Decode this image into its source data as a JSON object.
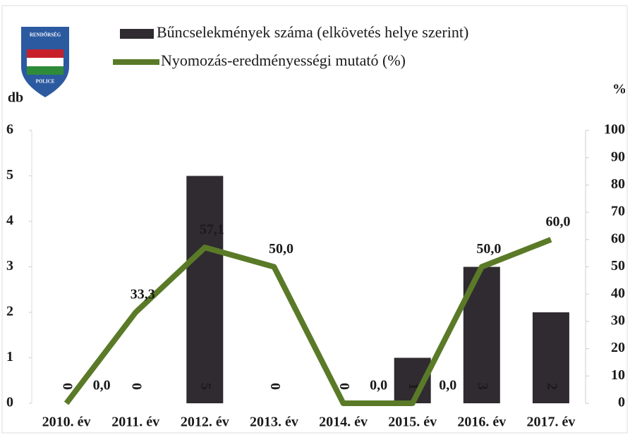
{
  "logo": {
    "top": "RENDŐRSÉG",
    "bottom": "POLICE"
  },
  "chart_data": {
    "type": "bar",
    "categories": [
      "2010. év",
      "2011. év",
      "2012. év",
      "2013. év",
      "2014. év",
      "2015. év",
      "2016. év",
      "2017. év"
    ],
    "series": [
      {
        "name": "Bűncselekmények száma (elkövetés helye szerint)",
        "type": "bar",
        "color": "#2f2b30",
        "values": [
          0,
          0,
          5,
          0,
          0,
          1,
          3,
          2
        ]
      },
      {
        "name": "Nyomozás-eredményességi mutató (%)",
        "type": "line",
        "axis": "y2",
        "color": "#5a7a28",
        "values": [
          0.0,
          33.3,
          57.1,
          50.0,
          0.0,
          0.0,
          50.0,
          60.0
        ],
        "value_labels": [
          "0,0",
          "33,3",
          "57,1",
          "50,0",
          "0,0",
          "0,0",
          "50,0",
          "60,0"
        ]
      }
    ],
    "ylabel": "db",
    "y2label": "%",
    "ylim": [
      0,
      6
    ],
    "yticks": [
      0,
      1,
      2,
      3,
      4,
      5,
      6
    ],
    "y2lim": [
      0,
      100
    ],
    "y2ticks": [
      0,
      10,
      20,
      30,
      40,
      50,
      60,
      70,
      80,
      90,
      100
    ]
  }
}
